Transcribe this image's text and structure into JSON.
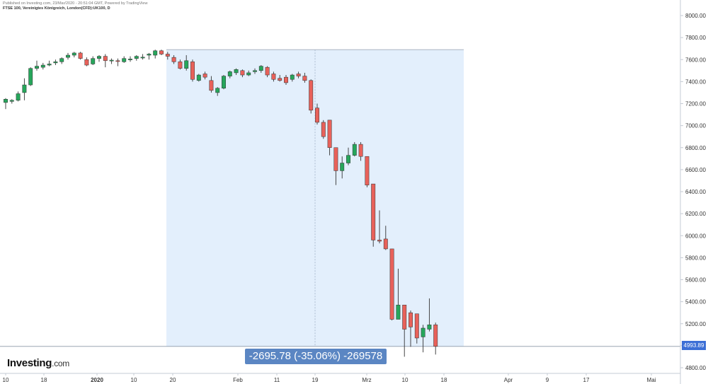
{
  "header": {
    "published": "Published on Investing.com, 23/Mar/2020 - 20:51:04 GMT, Powered by TradingView",
    "symbol": "FTSE 100, Vereinigtes Königreich, London(CFD):UK100, D"
  },
  "logo": {
    "name": "Investing",
    "domain": ".com"
  },
  "measurement": {
    "label": "-2695.78 (-35.06%) -269578"
  },
  "last_price": {
    "label": "4993.89",
    "value": 4993.89
  },
  "colors": {
    "up": "#26a65b",
    "down": "#e8615a",
    "range_fill": "#e3effc",
    "range_border": "#aab4c2",
    "last_price_tag": "#3c6fd6",
    "measure_label": "#5b86c3"
  },
  "chart_data": {
    "type": "candlestick",
    "title": "FTSE 100, Vereinigtes Königreich, London(CFD):UK100, D",
    "ylim": [
      4800,
      8000
    ],
    "y_ticks": [
      "8000.00",
      "7800.00",
      "7600.00",
      "7400.00",
      "7200.00",
      "7000.00",
      "6800.00",
      "6600.00",
      "6400.00",
      "6200.00",
      "6000.00",
      "5800.00",
      "5600.00",
      "5400.00",
      "5200.00",
      "5000.00",
      "4800.00"
    ],
    "x_ticks": [
      "10",
      "18",
      "2020",
      "10",
      "20",
      "Feb",
      "11",
      "19",
      "Mrz",
      "10",
      "18",
      "Apr",
      "9",
      "17",
      "Mai"
    ],
    "range_highlight": {
      "from": 7689.67,
      "to": 4993.89
    },
    "candles": [
      {
        "o": 7210,
        "h": 7250,
        "l": 7150,
        "c": 7240
      },
      {
        "o": 7220,
        "h": 7240,
        "l": 7200,
        "c": 7230
      },
      {
        "o": 7230,
        "h": 7310,
        "l": 7220,
        "c": 7290
      },
      {
        "o": 7300,
        "h": 7430,
        "l": 7230,
        "c": 7370
      },
      {
        "o": 7370,
        "h": 7530,
        "l": 7360,
        "c": 7520
      },
      {
        "o": 7520,
        "h": 7590,
        "l": 7500,
        "c": 7540
      },
      {
        "o": 7530,
        "h": 7570,
        "l": 7510,
        "c": 7550
      },
      {
        "o": 7550,
        "h": 7590,
        "l": 7540,
        "c": 7560
      },
      {
        "o": 7570,
        "h": 7600,
        "l": 7550,
        "c": 7580
      },
      {
        "o": 7580,
        "h": 7620,
        "l": 7560,
        "c": 7610
      },
      {
        "o": 7620,
        "h": 7660,
        "l": 7600,
        "c": 7640
      },
      {
        "o": 7640,
        "h": 7670,
        "l": 7620,
        "c": 7660
      },
      {
        "o": 7660,
        "h": 7670,
        "l": 7600,
        "c": 7610
      },
      {
        "o": 7600,
        "h": 7620,
        "l": 7540,
        "c": 7550
      },
      {
        "o": 7560,
        "h": 7630,
        "l": 7550,
        "c": 7610
      },
      {
        "o": 7610,
        "h": 7640,
        "l": 7580,
        "c": 7630
      },
      {
        "o": 7630,
        "h": 7650,
        "l": 7530,
        "c": 7590
      },
      {
        "o": 7590,
        "h": 7610,
        "l": 7560,
        "c": 7595
      },
      {
        "o": 7590,
        "h": 7610,
        "l": 7540,
        "c": 7588
      },
      {
        "o": 7580,
        "h": 7630,
        "l": 7570,
        "c": 7610
      },
      {
        "o": 7600,
        "h": 7630,
        "l": 7580,
        "c": 7605
      },
      {
        "o": 7610,
        "h": 7640,
        "l": 7590,
        "c": 7630
      },
      {
        "o": 7620,
        "h": 7650,
        "l": 7600,
        "c": 7622
      },
      {
        "o": 7640,
        "h": 7660,
        "l": 7600,
        "c": 7650
      },
      {
        "o": 7640,
        "h": 7690,
        "l": 7610,
        "c": 7680
      },
      {
        "o": 7680,
        "h": 7690,
        "l": 7640,
        "c": 7650
      },
      {
        "o": 7650,
        "h": 7670,
        "l": 7600,
        "c": 7630
      },
      {
        "o": 7620,
        "h": 7640,
        "l": 7560,
        "c": 7580
      },
      {
        "o": 7580,
        "h": 7600,
        "l": 7510,
        "c": 7520
      },
      {
        "o": 7520,
        "h": 7640,
        "l": 7500,
        "c": 7590
      },
      {
        "o": 7580,
        "h": 7600,
        "l": 7400,
        "c": 7420
      },
      {
        "o": 7410,
        "h": 7470,
        "l": 7400,
        "c": 7460
      },
      {
        "o": 7470,
        "h": 7490,
        "l": 7420,
        "c": 7440
      },
      {
        "o": 7410,
        "h": 7450,
        "l": 7300,
        "c": 7320
      },
      {
        "o": 7300,
        "h": 7350,
        "l": 7270,
        "c": 7340
      },
      {
        "o": 7340,
        "h": 7460,
        "l": 7330,
        "c": 7450
      },
      {
        "o": 7450,
        "h": 7500,
        "l": 7430,
        "c": 7490
      },
      {
        "o": 7480,
        "h": 7520,
        "l": 7460,
        "c": 7510
      },
      {
        "o": 7500,
        "h": 7510,
        "l": 7440,
        "c": 7460
      },
      {
        "o": 7460,
        "h": 7500,
        "l": 7450,
        "c": 7480
      },
      {
        "o": 7490,
        "h": 7520,
        "l": 7470,
        "c": 7500
      },
      {
        "o": 7500,
        "h": 7550,
        "l": 7480,
        "c": 7540
      },
      {
        "o": 7530,
        "h": 7540,
        "l": 7440,
        "c": 7460
      },
      {
        "o": 7470,
        "h": 7490,
        "l": 7400,
        "c": 7420
      },
      {
        "o": 7430,
        "h": 7460,
        "l": 7400,
        "c": 7410
      },
      {
        "o": 7440,
        "h": 7460,
        "l": 7370,
        "c": 7390
      },
      {
        "o": 7420,
        "h": 7470,
        "l": 7400,
        "c": 7460
      },
      {
        "o": 7470,
        "h": 7490,
        "l": 7430,
        "c": 7450
      },
      {
        "o": 7450,
        "h": 7480,
        "l": 7390,
        "c": 7410
      },
      {
        "o": 7410,
        "h": 7420,
        "l": 7110,
        "c": 7140
      },
      {
        "o": 7160,
        "h": 7200,
        "l": 7010,
        "c": 7030
      },
      {
        "o": 7030,
        "h": 7050,
        "l": 6880,
        "c": 6900
      },
      {
        "o": 7050,
        "h": 7050,
        "l": 6730,
        "c": 6800
      },
      {
        "o": 6800,
        "h": 6800,
        "l": 6460,
        "c": 6590
      },
      {
        "o": 6590,
        "h": 6720,
        "l": 6520,
        "c": 6660
      },
      {
        "o": 6660,
        "h": 6800,
        "l": 6640,
        "c": 6730
      },
      {
        "o": 6730,
        "h": 6850,
        "l": 6720,
        "c": 6830
      },
      {
        "o": 6830,
        "h": 6850,
        "l": 6680,
        "c": 6720
      },
      {
        "o": 6720,
        "h": 6720,
        "l": 6440,
        "c": 6460
      },
      {
        "o": 6470,
        "h": 6470,
        "l": 5900,
        "c": 5960
      },
      {
        "o": 5960,
        "h": 6230,
        "l": 5930,
        "c": 5950
      },
      {
        "o": 5970,
        "h": 6090,
        "l": 5870,
        "c": 5880
      },
      {
        "o": 5880,
        "h": 5880,
        "l": 5230,
        "c": 5240
      },
      {
        "o": 5240,
        "h": 5700,
        "l": 5240,
        "c": 5370
      },
      {
        "o": 5370,
        "h": 5370,
        "l": 4900,
        "c": 5150
      },
      {
        "o": 5300,
        "h": 5320,
        "l": 4990,
        "c": 5170
      },
      {
        "o": 5290,
        "h": 5290,
        "l": 5020,
        "c": 5070
      },
      {
        "o": 5080,
        "h": 5190,
        "l": 4940,
        "c": 5160
      },
      {
        "o": 5150,
        "h": 5430,
        "l": 5130,
        "c": 5190
      },
      {
        "o": 5190,
        "h": 5210,
        "l": 4920,
        "c": 4994
      }
    ]
  }
}
